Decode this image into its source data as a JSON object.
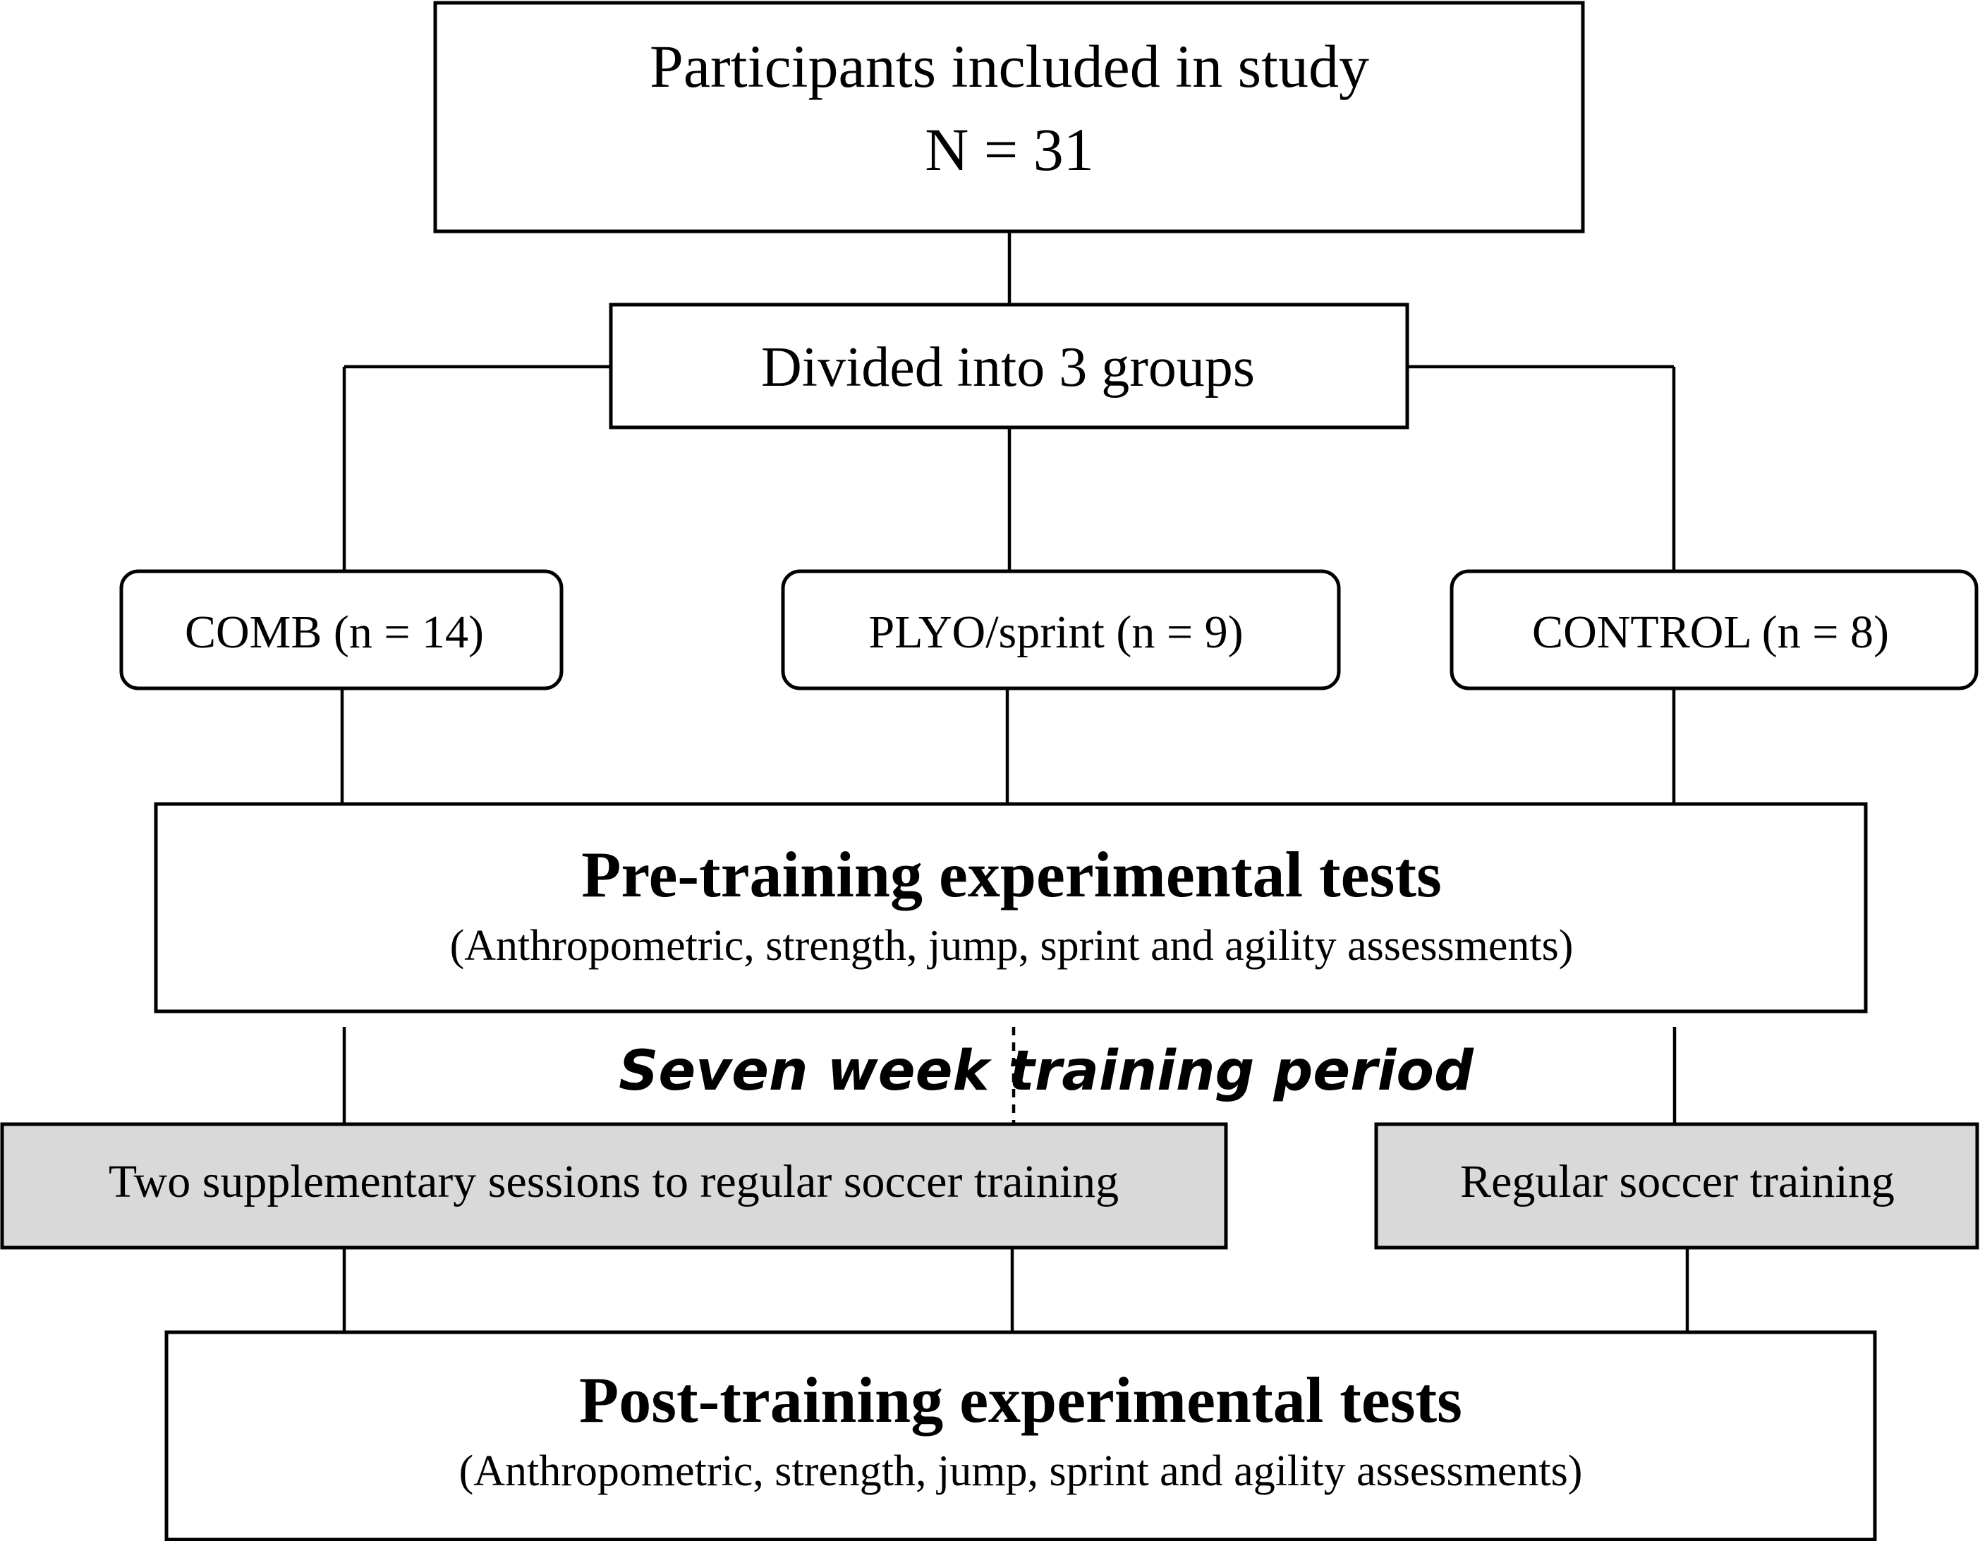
{
  "top_box": {
    "title": "Participants included in study",
    "count": "N = 31"
  },
  "divide_box": {
    "label": "Divided into 3 groups"
  },
  "groups": [
    {
      "label": "COMB (n = 14)"
    },
    {
      "label": "PLYO/sprint (n = 9)"
    },
    {
      "label": "CONTROL (n = 8)"
    }
  ],
  "pre_tests": {
    "title": "Pre-training experimental tests",
    "subtitle": "(Anthropometric, strength, jump, sprint and agility assessments)"
  },
  "training_period": {
    "label": "Seven week training period"
  },
  "interventions": {
    "supplementary": "Two supplementary sessions to regular soccer training",
    "regular": "Regular soccer training"
  },
  "post_tests": {
    "title": "Post-training experimental tests",
    "subtitle": "(Anthropometric, strength, jump, sprint and agility assessments)"
  },
  "colors": {
    "stroke": "#000000",
    "intervention_fill": "#d9d9d9",
    "box_fill": "#ffffff"
  }
}
